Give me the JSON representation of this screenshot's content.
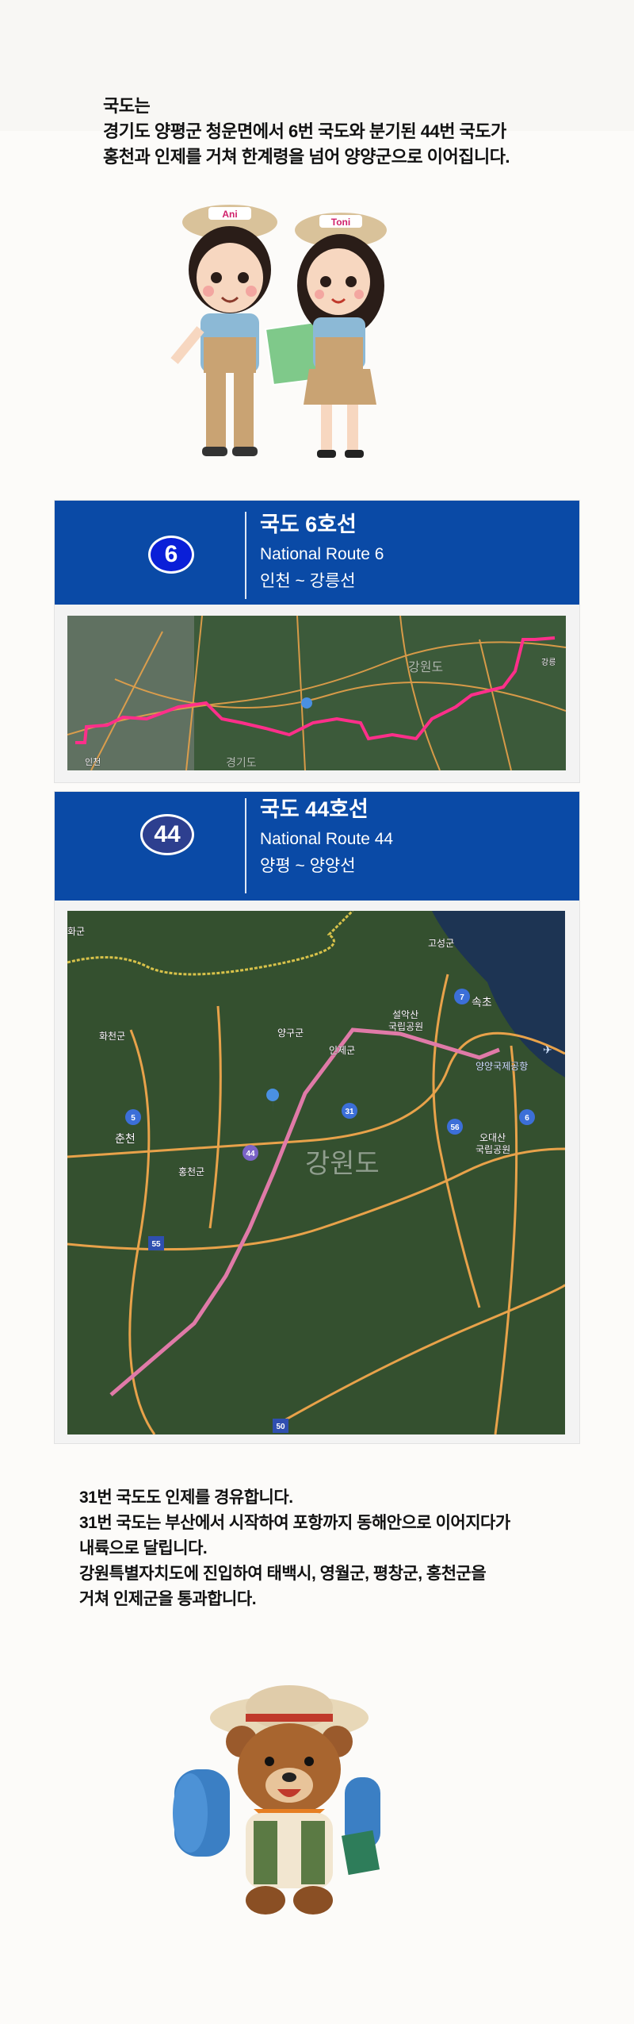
{
  "intro": {
    "lines": [
      "국도는",
      "경기도 양평군 청운면에서 6번 국도와 분기된 44번 국도가",
      "홍천과 인제를 거쳐 한계령을 넘어 양양군으로 이어집니다."
    ]
  },
  "characters": {
    "left_cap": "Ani",
    "right_cap": "Toni"
  },
  "route6": {
    "number": "6",
    "title_ko": "국도 6호선",
    "title_en": "National Route 6",
    "section": "인천 ~ 강릉선",
    "map_labels": [
      "인천",
      "강원도",
      "경기도",
      "강릉"
    ],
    "route_color": "#ff2f8a"
  },
  "route44": {
    "number": "44",
    "title_ko": "국도 44호선",
    "title_en": "National Route 44",
    "section": "양평 ~ 양양선",
    "map_labels": {
      "goseong": "고성군",
      "sokcho": "속초",
      "seorak": "설악산",
      "seorak2": "국립공원",
      "yanggu": "양구군",
      "inje": "인제군",
      "hwacheon": "화천군",
      "chuncheon": "춘천",
      "hongcheon": "홍천군",
      "airport": "양양국제공항",
      "odae": "오대산",
      "odae2": "국립공원",
      "gangwon": "강원도",
      "hwa": "화군"
    },
    "route_shields": [
      "7",
      "5",
      "31",
      "56",
      "44",
      "6",
      "55",
      "50"
    ],
    "route_color": "#e07aa8"
  },
  "outro": {
    "lines": [
      "31번 국도도 인제를 경유합니다.",
      "31번 국도는 부산에서 시작하여 포항까지 동해안으로 이어지다가",
      "내륙으로 달립니다.",
      "강원특별자치도에 진입하여 태백시, 영월군, 평창군, 홍천군을",
      "거쳐 인제군을 통과합니다."
    ]
  },
  "colors": {
    "header_blue": "#0a4aa6",
    "badge6": "#0a1fd8",
    "badge44": "#2d3f8f",
    "road": "#e8a24a"
  }
}
